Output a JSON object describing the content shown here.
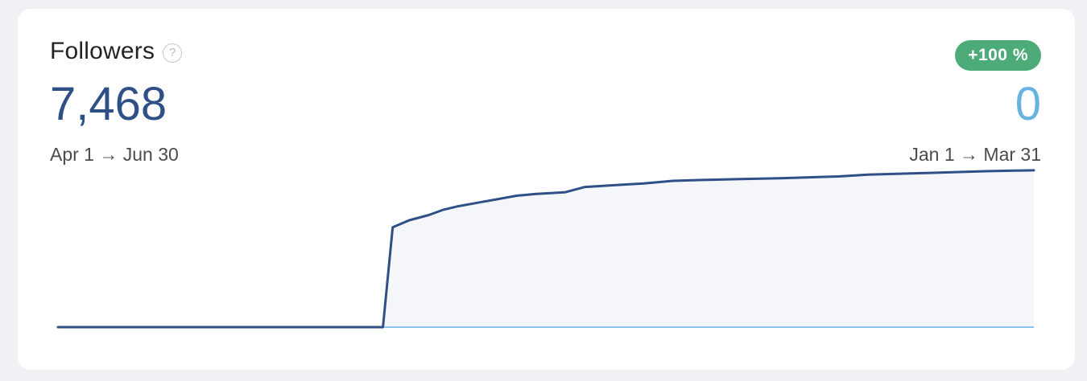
{
  "card": {
    "title": "Followers",
    "help_icon": "question-circle-icon",
    "change_badge": "+100 %",
    "current_value": "7,468",
    "previous_value": "0",
    "current_range": "Apr 1 → Jun 30",
    "previous_range": "Jan 1 → Mar 31"
  },
  "colors": {
    "current_line": "#2f4f87",
    "current_fill": "#f4f6fa",
    "previous_line": "#66b3e0",
    "badge": "#4daa79"
  },
  "chart_data": {
    "type": "line",
    "series": [
      {
        "x": [
          0,
          0.333,
          0.343,
          0.36,
          0.38,
          0.395,
          0.41,
          0.43,
          0.45,
          0.47,
          0.49,
          0.505,
          0.52,
          0.54,
          0.555,
          0.57,
          0.6,
          0.63,
          0.66,
          0.7,
          0.74,
          0.77,
          0.8,
          0.83,
          0.86,
          0.89,
          0.92,
          0.95,
          0.98,
          1.0
        ],
        "values": [
          0,
          0,
          0.57,
          0.61,
          0.64,
          0.67,
          0.69,
          0.71,
          0.73,
          0.75,
          0.76,
          0.765,
          0.77,
          0.8,
          0.805,
          0.81,
          0.82,
          0.835,
          0.84,
          0.845,
          0.85,
          0.855,
          0.86,
          0.87,
          0.875,
          0.88,
          0.885,
          0.89,
          0.893,
          0.895
        ]
      },
      {
        "x": [
          0,
          1
        ],
        "values": [
          0,
          0
        ]
      }
    ]
  }
}
